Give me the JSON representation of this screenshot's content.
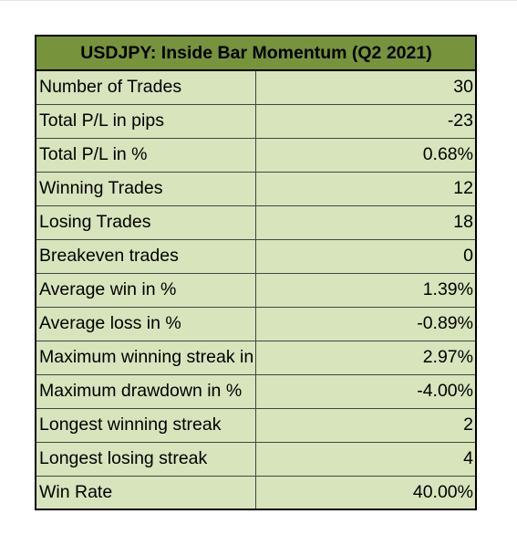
{
  "colors": {
    "header_background": "#77933c",
    "cell_background": "#d8e4bc",
    "border": "#000000"
  },
  "table": {
    "title": "USDJPY: Inside Bar Momentum (Q2 2021)",
    "rows": [
      {
        "label": "Number of Trades",
        "value": "30"
      },
      {
        "label": "Total P/L in pips",
        "value": "-23"
      },
      {
        "label": "Total P/L in %",
        "value": "0.68%"
      },
      {
        "label": "Winning Trades",
        "value": "12"
      },
      {
        "label": "Losing Trades",
        "value": "18"
      },
      {
        "label": "Breakeven trades",
        "value": "0"
      },
      {
        "label": "Average win in %",
        "value": "1.39%"
      },
      {
        "label": "Average loss in %",
        "value": "-0.89%"
      },
      {
        "label": "Maximum winning streak in %",
        "value": "2.97%"
      },
      {
        "label": "Maximum drawdown in %",
        "value": "-4.00%"
      },
      {
        "label": "Longest winning streak",
        "value": "2"
      },
      {
        "label": "Longest losing streak",
        "value": "4"
      },
      {
        "label": "Win Rate",
        "value": "40.00%"
      }
    ]
  }
}
